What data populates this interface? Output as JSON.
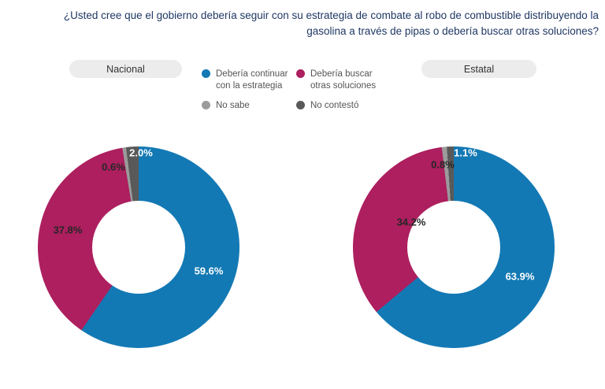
{
  "title": "¿Usted cree que el gobierno debería seguir con su estrategia de combate al robo de combustible distribuyendo la gasolina a través de pipas o debería buscar otras soluciones?",
  "legend": [
    {
      "label": "Debería continuar con la estrategia",
      "color": "#1379b4"
    },
    {
      "label": "Debería buscar otras soluciones",
      "color": "#ad1f5f"
    },
    {
      "label": "No sabe",
      "color": "#9b9b9b"
    },
    {
      "label": "No contestó",
      "color": "#595959"
    }
  ],
  "chart_data": [
    {
      "type": "pie",
      "title": "Nacional",
      "donut": true,
      "legend_position": "top",
      "categories": [
        "Debería continuar con la estrategia",
        "Debería buscar otras soluciones",
        "No sabe",
        "No contestó"
      ],
      "values": [
        59.6,
        37.8,
        0.6,
        2.0
      ],
      "labels": [
        "59.6%",
        "37.8%",
        "0.6%",
        "2.0%"
      ],
      "colors": [
        "#1379b4",
        "#ad1f5f",
        "#9b9b9b",
        "#595959"
      ]
    },
    {
      "type": "pie",
      "title": "Estatal",
      "donut": true,
      "legend_position": "top",
      "categories": [
        "Debería continuar con la estrategia",
        "Debería buscar otras soluciones",
        "No sabe",
        "No contestó"
      ],
      "values": [
        63.9,
        34.2,
        0.8,
        1.1
      ],
      "labels": [
        "63.9%",
        "34.2%",
        "0.8%",
        "1.1%"
      ],
      "colors": [
        "#1379b4",
        "#ad1f5f",
        "#9b9b9b",
        "#595959"
      ]
    }
  ],
  "colors": {
    "title_text": "#203864",
    "pill_bg": "#ececec",
    "legend_text": "#555555",
    "background": "#ffffff"
  }
}
